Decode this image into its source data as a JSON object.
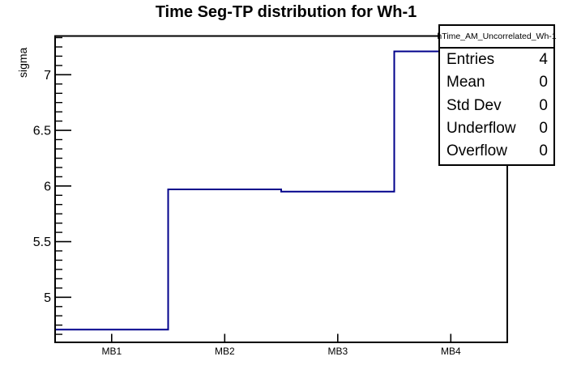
{
  "title": "Time Seg-TP distribution for Wh-1",
  "chart_data": {
    "type": "bar",
    "style": "step-histogram-outline",
    "categories": [
      "MB1",
      "MB2",
      "MB3",
      "MB4"
    ],
    "values": [
      4.71,
      5.97,
      5.95,
      7.21
    ],
    "title": "Time Seg-TP distribution for Wh-1",
    "xlabel": "",
    "ylabel": "sigma",
    "ylim": [
      4.595,
      7.348
    ],
    "yticks": [
      5,
      5.5,
      6,
      6.5,
      7
    ],
    "ytick_labels": [
      "5",
      "5.5",
      "6",
      "6.5",
      "7"
    ],
    "minor_ticks_per_major": 6,
    "grid": false,
    "legend_position": "none",
    "line_color": "#00008b",
    "frame_color": "#000000",
    "background_color": "#ffffff"
  },
  "stats_box": {
    "header": "hTime_AM_Uncorrelated_Wh-1",
    "rows": [
      {
        "label": "Entries",
        "value": "4"
      },
      {
        "label": "Mean",
        "value": "0"
      },
      {
        "label": "Std Dev",
        "value": "0"
      },
      {
        "label": "Underflow",
        "value": "0"
      },
      {
        "label": "Overflow",
        "value": "0"
      }
    ]
  }
}
